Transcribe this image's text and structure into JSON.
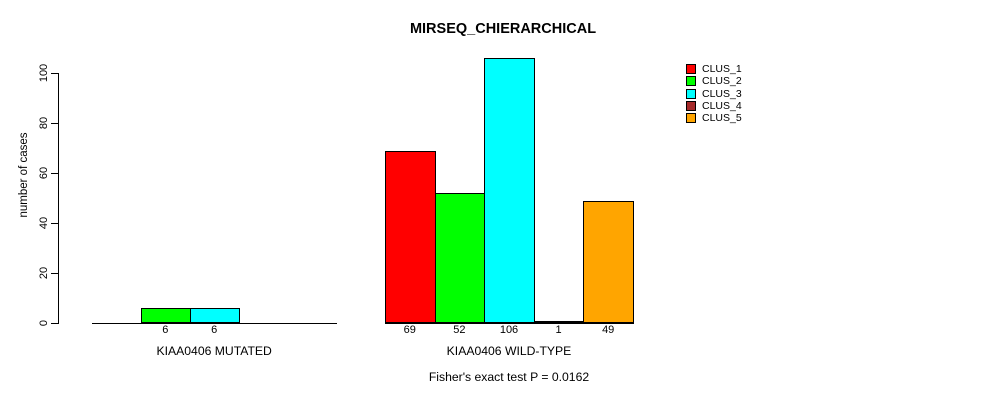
{
  "chart_data": {
    "type": "bar",
    "title": "MIRSEQ_CHIERARCHICAL",
    "ylabel": "number of cases",
    "xlabel": "",
    "ylim": [
      0,
      106
    ],
    "yticks": [
      0,
      20,
      40,
      60,
      80,
      100
    ],
    "grid": false,
    "legend_position": "top-right",
    "bar_border_color": "#000000",
    "series": [
      {
        "name": "CLUS_1",
        "color": "#FF0000"
      },
      {
        "name": "CLUS_2",
        "color": "#00FF00"
      },
      {
        "name": "CLUS_3",
        "color": "#00FFFF"
      },
      {
        "name": "CLUS_4",
        "color": "#A52A2A"
      },
      {
        "name": "CLUS_5",
        "color": "#FFA500"
      }
    ],
    "groups": [
      {
        "label": "KIAA0406 MUTATED",
        "values": [
          0,
          6,
          6,
          0,
          0
        ]
      },
      {
        "label": "KIAA0406 WILD-TYPE",
        "values": [
          69,
          52,
          106,
          1,
          49
        ]
      }
    ],
    "footnote": "Fisher's exact test P = 0.0162"
  }
}
